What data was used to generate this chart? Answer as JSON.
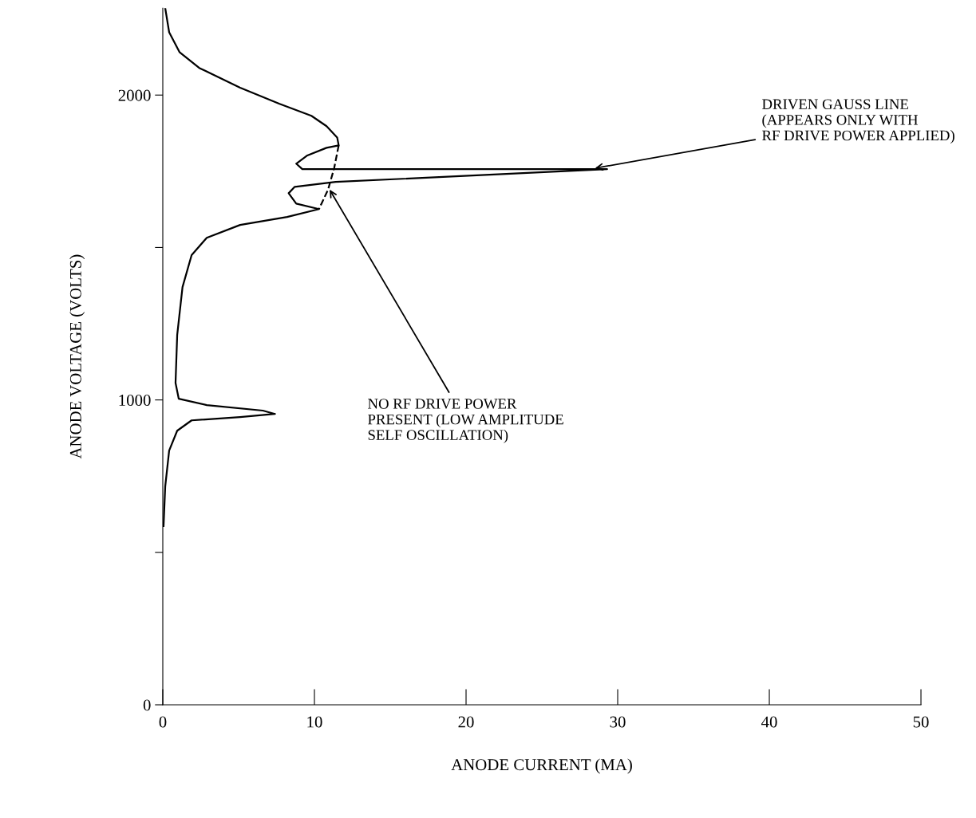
{
  "chart_data": {
    "type": "line",
    "xlabel": "ANODE CURRENT (MA)",
    "ylabel": "ANODE VOLTAGE (VOLTS)",
    "xlim": [
      0,
      50
    ],
    "ylim": [
      0,
      2285
    ],
    "xticks": [
      0,
      10,
      20,
      30,
      40,
      50
    ],
    "yticks": [
      0,
      {
        "value": 500,
        "label": null
      },
      1000,
      {
        "value": 1500,
        "label": null
      },
      2000
    ],
    "grid": false,
    "legend": false,
    "marker": "none",
    "tick_labels": true,
    "series": [
      {
        "color": "#000000",
        "line_style": "solid",
        "x": [
          0.16,
          0.42,
          1.1,
          2.4,
          5.1,
          7.7,
          9.8,
          10.8,
          11.5,
          11.6,
          10.8,
          9.5,
          8.8,
          9.2,
          29.3,
          11.4,
          8.7,
          8.3,
          8.8,
          10.3,
          8.2,
          5.1,
          2.9,
          1.9,
          1.3,
          0.95,
          0.84,
          1.05,
          2.9,
          6.6,
          7.4,
          5.1,
          1.9,
          0.95,
          0.42,
          0.16,
          0.05
        ],
        "values": [
          2285,
          2206,
          2141,
          2089,
          2024,
          1971,
          1932,
          1898,
          1861,
          1835,
          1827,
          1801,
          1775,
          1757,
          1757,
          1715,
          1699,
          1678,
          1644,
          1626,
          1600,
          1574,
          1532,
          1475,
          1370,
          1213,
          1056,
          1004,
          983,
          965,
          954,
          944,
          933,
          899,
          834,
          716,
          586
        ]
      },
      {
        "color": "#000000",
        "line_style": "dashed",
        "x": [
          11.6,
          11.3,
          10.9,
          10.3
        ],
        "values": [
          1835,
          1760,
          1690,
          1626
        ]
      }
    ],
    "annotations": [
      {
        "text": "DRIVEN GAUSS LINE\n(APPEARS ONLY WITH\nRF DRIVE POWER APPLIED)",
        "x": 28.5,
        "y": 1760
      },
      {
        "text": "NO RF DRIVE POWER\nPRESENT (LOW AMPLITUDE\nSELF OSCILLATION)",
        "x": 11,
        "y": 1690
      }
    ]
  }
}
